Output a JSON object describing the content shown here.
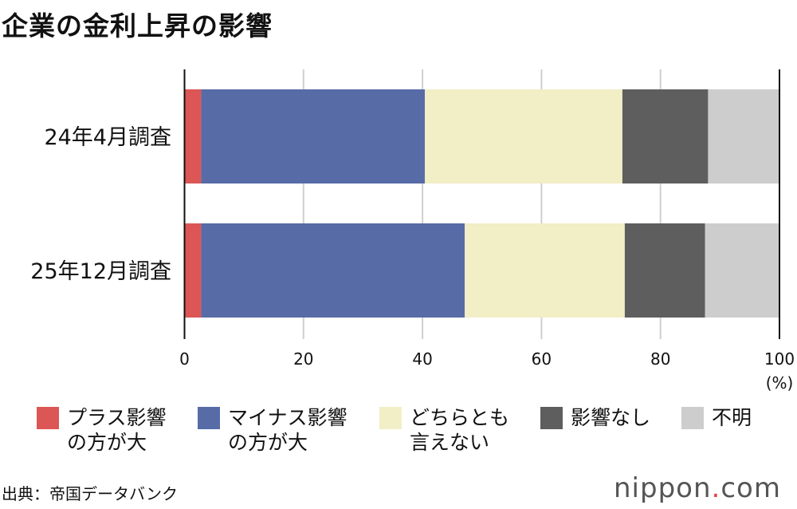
{
  "chart_data": {
    "type": "bar",
    "orientation": "horizontal",
    "stacked": true,
    "title": "企業の金利上昇の影響",
    "categories": [
      "24年4月調査",
      "25年12月調査"
    ],
    "series": [
      {
        "name": "プラス影響\nの方が大",
        "color": "#dc5656",
        "values": [
          2.8,
          2.8
        ]
      },
      {
        "name": "マイナス影響\nの方が大",
        "color": "#576ba6",
        "values": [
          37.6,
          44.3
        ]
      },
      {
        "name": "どちらとも\n言えない",
        "color": "#f2eec6",
        "values": [
          33.2,
          26.9
        ]
      },
      {
        "name": "影響なし",
        "color": "#5e5e5e",
        "values": [
          14.4,
          13.5
        ]
      },
      {
        "name": "不明",
        "color": "#cdcdcd",
        "values": [
          12.0,
          12.5
        ]
      }
    ],
    "xlim": [
      0,
      100
    ],
    "xticks": [
      "0",
      "20",
      "40",
      "60",
      "80",
      "100"
    ],
    "xunit": "(%)",
    "grid": true,
    "legend": "bottom"
  },
  "source": "出典：帝国データバンク",
  "logo": {
    "text": "nippon",
    "dot": ".",
    "suffix": "com"
  }
}
